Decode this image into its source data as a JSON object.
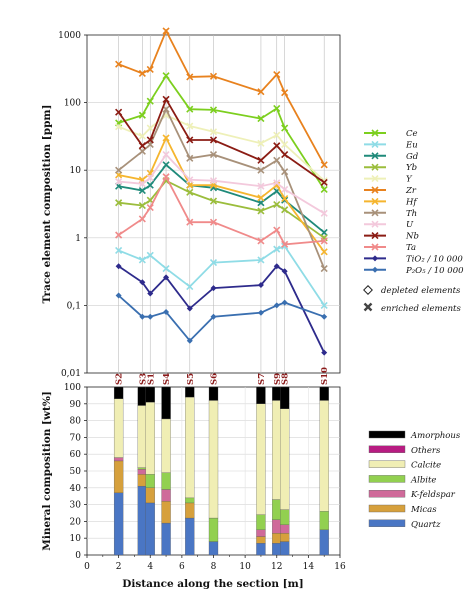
{
  "chart_data": [
    {
      "type": "line",
      "ylabel": "Trace element composition [ppm]",
      "yscale": "log",
      "ylim": [
        0.01,
        1000
      ],
      "ytick_labels": [
        "0,01",
        "0,1",
        "1",
        "10",
        "100",
        "1000"
      ],
      "samples": [
        {
          "name": "S2",
          "x": 2
        },
        {
          "name": "S3",
          "x": 3.5
        },
        {
          "name": "S1",
          "x": 4
        },
        {
          "name": "S4",
          "x": 5
        },
        {
          "name": "S5",
          "x": 6.5
        },
        {
          "name": "S6",
          "x": 8
        },
        {
          "name": "S7",
          "x": 11
        },
        {
          "name": "S9",
          "x": 12
        },
        {
          "name": "S8",
          "x": 12.5
        },
        {
          "name": "S10",
          "x": 15
        }
      ],
      "x": [
        2,
        3.5,
        4,
        5,
        6.5,
        8,
        11,
        12,
        12.5,
        15
      ],
      "series": [
        {
          "name": "Ce",
          "color": "#7ccf1e",
          "marker": "x",
          "values": [
            50,
            65,
            105,
            250,
            80,
            78,
            58,
            82,
            42,
            5.2
          ]
        },
        {
          "name": "Eu",
          "color": "#8fdce6",
          "marker": "x",
          "values": [
            0.65,
            0.47,
            0.55,
            0.35,
            0.19,
            0.43,
            0.47,
            0.68,
            0.75,
            0.1
          ]
        },
        {
          "name": "Gd",
          "color": "#1f8a7a",
          "marker": "x",
          "values": [
            5.8,
            5,
            6,
            12,
            6,
            5.5,
            3.3,
            4.9,
            3.6,
            1.2
          ]
        },
        {
          "name": "Yb",
          "color": "#9bbd3c",
          "marker": "x",
          "values": [
            3.3,
            3,
            3.6,
            7,
            4.7,
            3.5,
            2.5,
            3.1,
            2.6,
            1
          ]
        },
        {
          "name": "Y",
          "color": "#eef0b8",
          "marker": "x",
          "values": [
            44,
            32,
            42,
            65,
            45,
            37,
            25,
            33,
            24,
            7
          ]
        },
        {
          "name": "Zr",
          "color": "#e8821e",
          "marker": "x",
          "values": [
            370,
            270,
            310,
            1150,
            240,
            245,
            145,
            260,
            140,
            12
          ]
        },
        {
          "name": "Hf",
          "color": "#f5b52e",
          "marker": "x",
          "values": [
            8.5,
            7.2,
            9,
            30,
            6,
            6,
            3.9,
            6,
            3.8,
            0.62
          ]
        },
        {
          "name": "Th",
          "color": "#a8917a",
          "marker": "x",
          "values": [
            10,
            19,
            24,
            80,
            15,
            17,
            10,
            14,
            9.5,
            0.35
          ]
        },
        {
          "name": "U",
          "color": "#f3c9dc",
          "marker": "x",
          "values": [
            6.8,
            6.3,
            7.7,
            17,
            7.2,
            7,
            5.8,
            6.5,
            5.2,
            2.3
          ]
        },
        {
          "name": "Nb",
          "color": "#8b1c14",
          "marker": "x",
          "values": [
            72,
            23,
            28,
            112,
            28,
            28,
            14,
            23,
            17,
            6.6
          ]
        },
        {
          "name": "Ta",
          "color": "#f08a8a",
          "marker": "x",
          "values": [
            1.1,
            1.9,
            2.8,
            8,
            1.7,
            1.7,
            0.9,
            1.3,
            0.8,
            0.9
          ]
        },
        {
          "name": "TiO₂ / 10 000",
          "color": "#2e2b8c",
          "marker": "diamond",
          "values": [
            0.38,
            0.22,
            0.15,
            0.26,
            0.09,
            0.18,
            0.2,
            0.38,
            0.32,
            0.02
          ]
        },
        {
          "name": "P₂O₅ / 10 000",
          "color": "#3a6fb0",
          "marker": "diamond",
          "values": [
            0.14,
            0.068,
            0.068,
            0.08,
            0.03,
            0.068,
            0.078,
            0.1,
            0.11,
            0.068
          ]
        }
      ],
      "legend": {
        "position": "right"
      },
      "annotations": [
        "depleted elements",
        "enriched elements"
      ]
    },
    {
      "type": "bar",
      "stacked": true,
      "xlabel": "Distance along the section [m]",
      "ylabel": "Mineral composition [wt%]",
      "xlim": [
        0,
        16
      ],
      "ylim": [
        0,
        100
      ],
      "xtick_labels": [
        "0",
        "2",
        "4",
        "6",
        "8",
        "10",
        "12",
        "14",
        "16"
      ],
      "ytick_labels": [
        "0",
        "10",
        "20",
        "30",
        "40",
        "50",
        "60",
        "70",
        "80",
        "90",
        "100"
      ],
      "x": [
        2,
        3.5,
        4,
        5,
        6.5,
        8,
        11,
        12,
        12.5,
        15
      ],
      "series": [
        {
          "name": "Quartz",
          "color": "#4a76c4",
          "values": [
            37,
            41,
            31,
            19,
            22,
            8,
            7,
            7,
            8,
            15
          ]
        },
        {
          "name": "Micas",
          "color": "#d6a03c",
          "values": [
            19,
            7,
            9,
            13,
            9,
            0,
            4,
            6,
            5,
            0
          ]
        },
        {
          "name": "K-feldspar",
          "color": "#cf6a9a",
          "values": [
            2,
            3,
            0,
            7,
            0,
            0,
            4,
            8,
            5,
            0
          ]
        },
        {
          "name": "Albite",
          "color": "#92d050",
          "values": [
            0,
            1,
            8,
            10,
            3,
            14,
            9,
            12,
            9,
            11
          ]
        },
        {
          "name": "Calcite",
          "color": "#f0eeb4",
          "values": [
            35,
            37,
            43,
            32,
            60,
            70,
            66,
            59,
            60,
            66
          ]
        },
        {
          "name": "Others",
          "color": "#b81c82",
          "values": [
            0,
            0,
            0,
            0,
            0,
            0,
            0,
            0,
            0,
            0
          ]
        },
        {
          "name": "Amorphous",
          "color": "#000000",
          "values": [
            7,
            11,
            9,
            19,
            6,
            8,
            10,
            8,
            13,
            8
          ]
        }
      ],
      "legend": {
        "position": "right"
      }
    }
  ]
}
